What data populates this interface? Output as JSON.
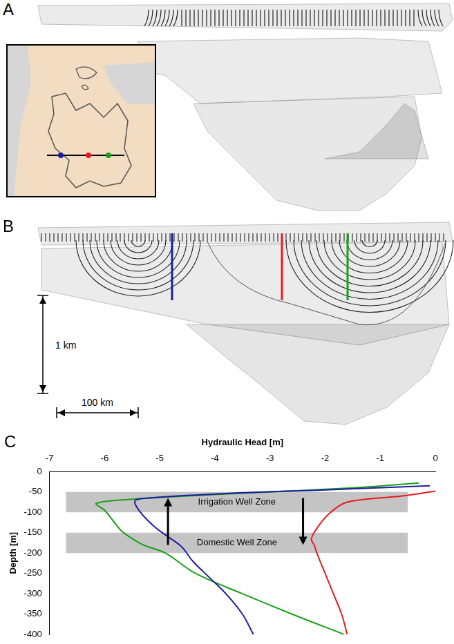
{
  "panels": [
    {
      "label": "A"
    },
    {
      "label": "B",
      "scale_bars": [
        "1 km",
        "100 km"
      ]
    }
  ],
  "chart_data": {
    "label": "C",
    "type": "line",
    "xlabel": "Hydraulic Head [m]",
    "ylabel": "Depth [m]",
    "xlim": [
      -7,
      0
    ],
    "xticks": [
      -7,
      -6,
      -5,
      -4,
      -3,
      -2,
      -1,
      0
    ],
    "ylim": [
      -400,
      0
    ],
    "yticks": [
      0,
      -50,
      -100,
      -150,
      -200,
      -250,
      -300,
      -350,
      -400
    ],
    "grid": false,
    "series": [
      {
        "color": "#1c1ca0",
        "line_style": "solid",
        "x": [
          -0.1,
          -2,
          -4,
          -5.2,
          -5.45,
          -5.35,
          -5.1,
          -4.85,
          -4.6,
          -4.4,
          -4.1,
          -3.8,
          -3.5,
          -3.3
        ],
        "values": [
          -35,
          -45,
          -55,
          -65,
          -72,
          -100,
          -135,
          -160,
          -185,
          -220,
          -260,
          -300,
          -350,
          -400
        ]
      },
      {
        "color": "#e8191e",
        "line_style": "solid",
        "x": [
          0,
          -0.6,
          -1.6,
          -1.9,
          -2.1,
          -2.25,
          -2.2,
          -2.15,
          -2,
          -1.85,
          -1.7,
          -1.6
        ],
        "values": [
          -48,
          -60,
          -75,
          -100,
          -130,
          -165,
          -180,
          -200,
          -250,
          -300,
          -350,
          -400
        ]
      },
      {
        "color": "#18a018",
        "line_style": "solid",
        "x": [
          -0.3,
          -1.5,
          -3,
          -4.5,
          -5.5,
          -6.15,
          -6,
          -5.85,
          -5.7,
          -5.55,
          -5.3,
          -4.9,
          -4.35,
          -3.5,
          -2.6,
          -1.65
        ],
        "values": [
          -28,
          -40,
          -50,
          -60,
          -68,
          -78,
          -95,
          -120,
          -145,
          -160,
          -180,
          -200,
          -250,
          -300,
          -350,
          -400
        ]
      }
    ],
    "zones": [
      {
        "text": "Irrigation Well Zone",
        "x": [
          -6.7,
          -0.5
        ],
        "y": [
          -100,
          -50
        ]
      },
      {
        "text": "Domestic Well Zone",
        "x": [
          -6.7,
          -0.5
        ],
        "y": [
          -200,
          -150
        ]
      }
    ],
    "arrows": [
      {
        "x": -4.85,
        "y": [
          -180,
          -65
        ]
      },
      {
        "x": -2.4,
        "y": [
          -65,
          -180
        ]
      }
    ]
  }
}
